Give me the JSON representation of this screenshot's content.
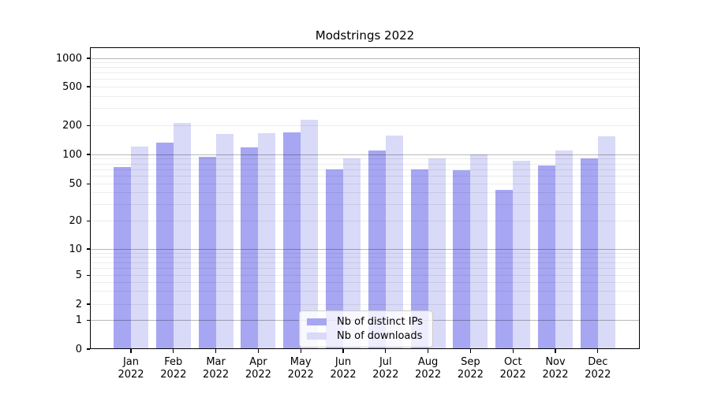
{
  "chart_data": {
    "type": "bar",
    "title": "Modstrings 2022",
    "x_axis": {
      "months": [
        "Jan",
        "Feb",
        "Mar",
        "Apr",
        "May",
        "Jun",
        "Jul",
        "Aug",
        "Sep",
        "Oct",
        "Nov",
        "Dec"
      ],
      "year": "2022"
    },
    "y_axis": {
      "scale": "symlog",
      "tick_labels": [
        "0",
        "1",
        "2",
        "5",
        "10",
        "20",
        "50",
        "100",
        "200",
        "500",
        "1000"
      ],
      "ylim": [
        0,
        1250
      ],
      "grid": true
    },
    "series": [
      {
        "name": "Nb of distinct IPs",
        "color": "#a6a6f2",
        "values": [
          75,
          133,
          94,
          119,
          169,
          70,
          110,
          70,
          69,
          43,
          77,
          91
        ]
      },
      {
        "name": "Nb of downloads",
        "color": "#d9d9f8",
        "values": [
          122,
          215,
          165,
          168,
          230,
          91,
          158,
          92,
          100,
          87,
          110,
          154
        ]
      }
    ],
    "legend_position": "lower center"
  },
  "colors": {
    "background": "#ffffff",
    "grid_major": "rgba(0,0,0,0.28)",
    "grid_minor": "rgba(0,0,0,0.075)",
    "spine": "#000000",
    "text": "#000000",
    "legend_border": "#cccccc",
    "legend_background": "rgba(255,255,255,0.8)"
  }
}
